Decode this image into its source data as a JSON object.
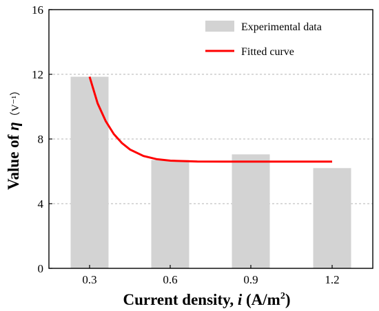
{
  "chart_data": {
    "type": "bar",
    "categories": [
      "0.3",
      "0.6",
      "0.9",
      "1.2"
    ],
    "series": [
      {
        "name": "Experimental data",
        "type": "bar",
        "values": [
          11.85,
          6.7,
          7.05,
          6.2
        ],
        "color": "#d3d3d3"
      },
      {
        "name": "Fitted curve",
        "type": "line",
        "x": [
          0.3,
          0.33,
          0.36,
          0.39,
          0.42,
          0.45,
          0.5,
          0.55,
          0.6,
          0.7,
          0.8,
          0.9,
          1.0,
          1.1,
          1.2
        ],
        "values": [
          11.85,
          10.2,
          9.1,
          8.3,
          7.75,
          7.35,
          6.95,
          6.75,
          6.66,
          6.61,
          6.6,
          6.6,
          6.6,
          6.6,
          6.6
        ],
        "color": "#ff0000"
      }
    ],
    "xlabel_main": "Current density, ",
    "xlabel_var": "i",
    "xlabel_unit": " (A/m",
    "xlabel_sup": "2",
    "xlabel_close": ")",
    "ylabel_main": "Value of ",
    "ylabel_var": "η",
    "ylabel_unit": "（V⁻¹）",
    "ylim": [
      0,
      16
    ],
    "yticks": [
      "0",
      "4",
      "8",
      "12",
      "16"
    ],
    "ytick_values": [
      0,
      4,
      8,
      12,
      16
    ],
    "grid": "horizontal dashed",
    "legend_placement": "top-right"
  }
}
